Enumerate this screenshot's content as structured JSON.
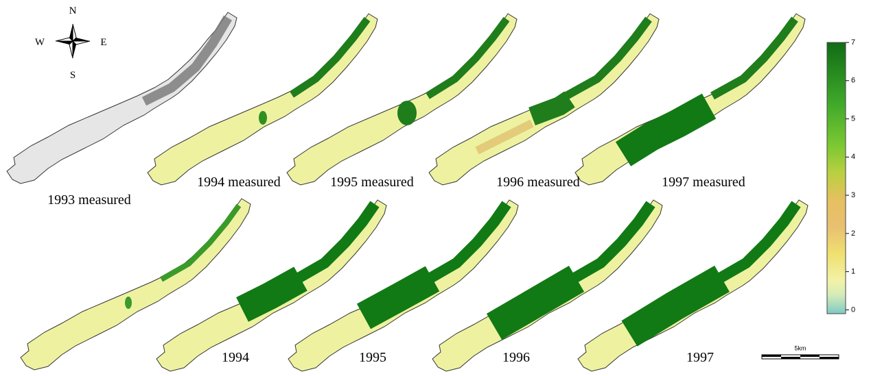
{
  "compass": {
    "north": "N",
    "south": "S",
    "west": "W",
    "east": "E"
  },
  "panels": {
    "measured": [
      "1993 measured",
      "1994 measured",
      "1995 measured",
      "1996 measured",
      "1997 measured"
    ],
    "simulated": [
      "1994",
      "1995",
      "1996",
      "1997"
    ]
  },
  "colorbar": {
    "range": [
      -0.1,
      7
    ],
    "ticks": [
      0,
      1,
      2,
      3,
      4,
      5,
      6,
      7
    ]
  },
  "scale_bar": {
    "label": "5km"
  }
}
